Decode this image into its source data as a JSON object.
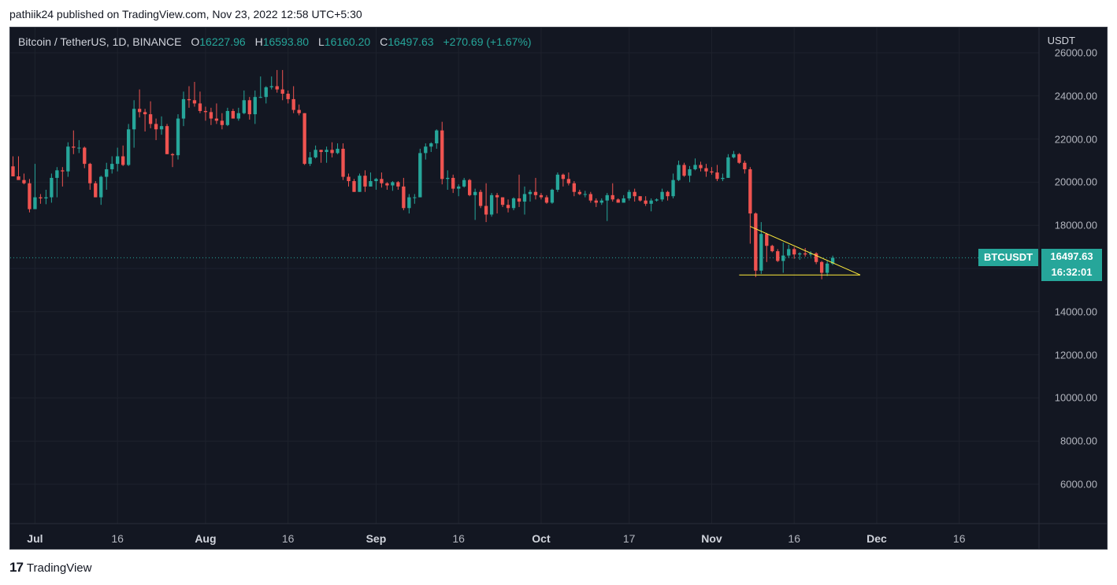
{
  "byline": "pathiik24 published on TradingView.com, Nov 23, 2022 12:58 UTC+5:30",
  "legend": {
    "symbol": "Bitcoin / TetherUS, 1D, BINANCE",
    "open_label": "O",
    "open": "16227.96",
    "high_label": "H",
    "high": "16593.80",
    "low_label": "L",
    "low": "16160.20",
    "close_label": "C",
    "close": "16497.63",
    "change": "+270.69 (+1.67%)"
  },
  "price_axis_unit": "USDT",
  "symbol_badge": "BTCUSDT",
  "price_badge": {
    "price": "16497.63",
    "countdown": "16:32:01"
  },
  "footer": {
    "brand": "TradingView",
    "logo_glyph": "17"
  },
  "colors": {
    "up": "#26a69a",
    "down": "#ef5350",
    "background": "#131722",
    "trendline": "#ffeb3b"
  },
  "chart_data": {
    "type": "candlestick",
    "symbol": "BTCUSDT",
    "interval": "1D",
    "y_ticks": [
      "6000.00",
      "8000.00",
      "10000.00",
      "12000.00",
      "14000.00",
      "16000.00",
      "18000.00",
      "20000.00",
      "22000.00",
      "24000.00",
      "26000.00"
    ],
    "x_ticks": [
      {
        "label": "Jul",
        "date": "2022-07-01",
        "major": true
      },
      {
        "label": "16",
        "date": "2022-07-16",
        "major": false
      },
      {
        "label": "Aug",
        "date": "2022-08-01",
        "major": true
      },
      {
        "label": "16",
        "date": "2022-08-16",
        "major": false
      },
      {
        "label": "Sep",
        "date": "2022-09-01",
        "major": true
      },
      {
        "label": "16",
        "date": "2022-09-16",
        "major": false
      },
      {
        "label": "Oct",
        "date": "2022-10-01",
        "major": true
      },
      {
        "label": "17",
        "date": "2022-10-17",
        "major": false
      },
      {
        "label": "Nov",
        "date": "2022-11-01",
        "major": true
      },
      {
        "label": "16",
        "date": "2022-11-16",
        "major": false
      },
      {
        "label": "Dec",
        "date": "2022-12-01",
        "major": true
      },
      {
        "label": "16",
        "date": "2022-12-16",
        "major": false
      }
    ],
    "ylim": [
      4500,
      26200
    ],
    "xlim": [
      "2022-06-27",
      "2022-12-31"
    ],
    "last_price": 16497.63,
    "candles": [
      [
        "2022-06-27",
        20735,
        21200,
        20450,
        20270
      ],
      [
        "2022-06-28",
        20270,
        21200,
        20150,
        20100
      ],
      [
        "2022-06-29",
        20100,
        20400,
        19900,
        19950
      ],
      [
        "2022-06-30",
        19950,
        20150,
        18600,
        18750
      ],
      [
        "2022-07-01",
        18750,
        20850,
        18800,
        19300
      ],
      [
        "2022-07-02",
        19300,
        19450,
        19000,
        19250
      ],
      [
        "2022-07-03",
        19250,
        19650,
        18980,
        19300
      ],
      [
        "2022-07-04",
        19300,
        20400,
        19050,
        20200
      ],
      [
        "2022-07-05",
        20200,
        20700,
        19300,
        20550
      ],
      [
        "2022-07-06",
        20550,
        20700,
        19800,
        20500
      ],
      [
        "2022-07-07",
        20500,
        21850,
        20250,
        21650
      ],
      [
        "2022-07-08",
        21650,
        22400,
        21300,
        21600
      ],
      [
        "2022-07-09",
        21600,
        21950,
        21350,
        21600
      ],
      [
        "2022-07-10",
        21600,
        21650,
        20650,
        20850
      ],
      [
        "2022-07-11",
        20850,
        20900,
        19650,
        19950
      ],
      [
        "2022-07-12",
        19950,
        20050,
        19300,
        19300
      ],
      [
        "2022-07-13",
        19300,
        20300,
        18950,
        20250
      ],
      [
        "2022-07-14",
        20250,
        20900,
        19650,
        20600
      ],
      [
        "2022-07-15",
        20600,
        21200,
        20400,
        20850
      ],
      [
        "2022-07-16",
        20850,
        21600,
        20500,
        21200
      ],
      [
        "2022-07-17",
        21200,
        21700,
        20750,
        20800
      ],
      [
        "2022-07-18",
        20800,
        22700,
        20750,
        22450
      ],
      [
        "2022-07-19",
        22450,
        23800,
        21600,
        23400
      ],
      [
        "2022-07-20",
        23400,
        24300,
        23000,
        23250
      ],
      [
        "2022-07-21",
        23250,
        23400,
        22350,
        23150
      ],
      [
        "2022-07-22",
        23150,
        23750,
        22500,
        22700
      ],
      [
        "2022-07-23",
        22700,
        22950,
        21950,
        22450
      ],
      [
        "2022-07-24",
        22450,
        23050,
        22200,
        22600
      ],
      [
        "2022-07-25",
        22600,
        22700,
        21300,
        21300
      ],
      [
        "2022-07-26",
        21300,
        21350,
        20700,
        21250
      ],
      [
        "2022-07-27",
        21250,
        23150,
        21050,
        22950
      ],
      [
        "2022-07-28",
        22950,
        24200,
        22600,
        23850
      ],
      [
        "2022-07-29",
        23850,
        24450,
        23450,
        23800
      ],
      [
        "2022-07-30",
        23800,
        24650,
        23500,
        23650
      ],
      [
        "2022-07-31",
        23650,
        24200,
        23200,
        23300
      ],
      [
        "2022-08-01",
        23300,
        23500,
        22850,
        23250
      ],
      [
        "2022-08-02",
        23250,
        23450,
        22650,
        22950
      ],
      [
        "2022-08-03",
        22950,
        23650,
        22700,
        22850
      ],
      [
        "2022-08-04",
        22850,
        23200,
        22450,
        22650
      ],
      [
        "2022-08-05",
        22650,
        23450,
        22600,
        23300
      ],
      [
        "2022-08-06",
        23300,
        23400,
        22950,
        22950
      ],
      [
        "2022-08-07",
        22950,
        23450,
        22850,
        23200
      ],
      [
        "2022-08-08",
        23200,
        24250,
        23150,
        23800
      ],
      [
        "2022-08-09",
        23800,
        23950,
        22900,
        23150
      ],
      [
        "2022-08-10",
        23150,
        24250,
        22700,
        23950
      ],
      [
        "2022-08-11",
        23950,
        24900,
        23900,
        23950
      ],
      [
        "2022-08-12",
        23950,
        24450,
        23650,
        24400
      ],
      [
        "2022-08-13",
        24400,
        24900,
        24300,
        24450
      ],
      [
        "2022-08-14",
        24450,
        25200,
        24150,
        24300
      ],
      [
        "2022-08-15",
        24300,
        25200,
        23800,
        24100
      ],
      [
        "2022-08-16",
        24100,
        24250,
        23650,
        23850
      ],
      [
        "2022-08-17",
        23850,
        24450,
        23200,
        23350
      ],
      [
        "2022-08-18",
        23350,
        23600,
        23100,
        23200
      ],
      [
        "2022-08-19",
        23200,
        23200,
        20800,
        20850
      ],
      [
        "2022-08-20",
        20850,
        21400,
        20750,
        21150
      ],
      [
        "2022-08-21",
        21150,
        21700,
        21100,
        21500
      ],
      [
        "2022-08-22",
        21500,
        21500,
        20900,
        21400
      ],
      [
        "2022-08-23",
        21400,
        21650,
        20900,
        21500
      ],
      [
        "2022-08-24",
        21500,
        21850,
        21150,
        21350
      ],
      [
        "2022-08-25",
        21350,
        21800,
        21300,
        21550
      ],
      [
        "2022-08-26",
        21550,
        21800,
        20100,
        20250
      ],
      [
        "2022-08-27",
        20250,
        20400,
        19800,
        20050
      ],
      [
        "2022-08-28",
        20050,
        20150,
        19550,
        19550
      ],
      [
        "2022-08-29",
        19550,
        20400,
        19550,
        20300
      ],
      [
        "2022-08-30",
        20300,
        20550,
        19550,
        19800
      ],
      [
        "2022-08-31",
        19800,
        20450,
        19800,
        20050
      ],
      [
        "2022-09-01",
        20050,
        20200,
        19650,
        20150
      ],
      [
        "2022-09-02",
        20150,
        20450,
        19750,
        19950
      ],
      [
        "2022-09-03",
        19950,
        20000,
        19650,
        19850
      ],
      [
        "2022-09-04",
        19850,
        20050,
        19600,
        20000
      ],
      [
        "2022-09-05",
        20000,
        20050,
        19650,
        19800
      ],
      [
        "2022-09-06",
        19800,
        20200,
        18700,
        18800
      ],
      [
        "2022-09-07",
        18800,
        19450,
        18550,
        19300
      ],
      [
        "2022-09-08",
        19300,
        19450,
        19000,
        19300
      ],
      [
        "2022-09-09",
        19300,
        21550,
        19300,
        21350
      ],
      [
        "2022-09-10",
        21350,
        21800,
        21050,
        21650
      ],
      [
        "2022-09-11",
        21650,
        21850,
        21400,
        21800
      ],
      [
        "2022-09-12",
        21800,
        22450,
        21550,
        22400
      ],
      [
        "2022-09-13",
        22400,
        22800,
        19900,
        20150
      ],
      [
        "2022-09-14",
        20150,
        20550,
        19650,
        20200
      ],
      [
        "2022-09-15",
        20200,
        20350,
        19500,
        19700
      ],
      [
        "2022-09-16",
        19700,
        19900,
        19350,
        19800
      ],
      [
        "2022-09-17",
        19800,
        20200,
        19750,
        20100
      ],
      [
        "2022-09-18",
        20100,
        20150,
        19350,
        19400
      ],
      [
        "2022-09-19",
        19400,
        19700,
        18250,
        19550
      ],
      [
        "2022-09-20",
        19550,
        19650,
        18800,
        18900
      ],
      [
        "2022-09-21",
        18900,
        19950,
        18150,
        18500
      ],
      [
        "2022-09-22",
        18500,
        19500,
        18400,
        19400
      ],
      [
        "2022-09-23",
        19400,
        19500,
        18550,
        19300
      ],
      [
        "2022-09-24",
        19300,
        19300,
        18850,
        18950
      ],
      [
        "2022-09-25",
        18950,
        19200,
        18600,
        18800
      ],
      [
        "2022-09-26",
        18800,
        19300,
        18700,
        19250
      ],
      [
        "2022-09-27",
        19250,
        20350,
        18850,
        19100
      ],
      [
        "2022-09-28",
        19100,
        19800,
        18500,
        19450
      ],
      [
        "2022-09-29",
        19450,
        19650,
        19100,
        19550
      ],
      [
        "2022-09-30",
        19550,
        20200,
        19200,
        19400
      ],
      [
        "2022-10-01",
        19400,
        19500,
        19200,
        19300
      ],
      [
        "2022-10-02",
        19300,
        19400,
        19000,
        19050
      ],
      [
        "2022-10-03",
        19050,
        19700,
        19000,
        19650
      ],
      [
        "2022-10-04",
        19650,
        20450,
        19550,
        20350
      ],
      [
        "2022-10-05",
        20350,
        20400,
        19800,
        20150
      ],
      [
        "2022-10-06",
        20150,
        20450,
        19850,
        19950
      ],
      [
        "2022-10-07",
        19950,
        20050,
        19350,
        19550
      ],
      [
        "2022-10-08",
        19550,
        19650,
        19400,
        19450
      ],
      [
        "2022-10-09",
        19450,
        19600,
        19300,
        19450
      ],
      [
        "2022-10-10",
        19450,
        19550,
        19050,
        19150
      ],
      [
        "2022-10-11",
        19150,
        19250,
        18850,
        19050
      ],
      [
        "2022-10-12",
        19050,
        19250,
        18950,
        19150
      ],
      [
        "2022-10-13",
        19150,
        19500,
        18200,
        19400
      ],
      [
        "2022-10-14",
        19400,
        19950,
        19100,
        19200
      ],
      [
        "2022-10-15",
        19200,
        19250,
        19050,
        19050
      ],
      [
        "2022-10-16",
        19050,
        19400,
        19050,
        19250
      ],
      [
        "2022-10-17",
        19250,
        19650,
        19150,
        19550
      ],
      [
        "2022-10-18",
        19550,
        19700,
        19100,
        19350
      ],
      [
        "2022-10-19",
        19350,
        19350,
        19100,
        19150
      ],
      [
        "2022-10-20",
        19150,
        19350,
        18900,
        19000
      ],
      [
        "2022-10-21",
        19000,
        19250,
        18650,
        19150
      ],
      [
        "2022-10-22",
        19150,
        19250,
        19100,
        19200
      ],
      [
        "2022-10-23",
        19200,
        19700,
        19100,
        19550
      ],
      [
        "2022-10-24",
        19550,
        19600,
        19150,
        19350
      ],
      [
        "2022-10-25",
        19350,
        20400,
        19250,
        20100
      ],
      [
        "2022-10-26",
        20100,
        21000,
        20050,
        20800
      ],
      [
        "2022-10-27",
        20800,
        20900,
        20250,
        20300
      ],
      [
        "2022-10-28",
        20300,
        20750,
        20000,
        20600
      ],
      [
        "2022-10-29",
        20600,
        21100,
        20550,
        20800
      ],
      [
        "2022-10-30",
        20800,
        20950,
        20500,
        20650
      ],
      [
        "2022-10-31",
        20650,
        20850,
        20250,
        20500
      ],
      [
        "2022-11-01",
        20500,
        20700,
        20350,
        20450
      ],
      [
        "2022-11-02",
        20450,
        20800,
        20050,
        20150
      ],
      [
        "2022-11-03",
        20150,
        20400,
        20050,
        20200
      ],
      [
        "2022-11-04",
        20200,
        21300,
        20200,
        21150
      ],
      [
        "2022-11-05",
        21150,
        21450,
        21100,
        21300
      ],
      [
        "2022-11-06",
        21300,
        21350,
        20850,
        20900
      ],
      [
        "2022-11-07",
        20900,
        21000,
        20400,
        20600
      ],
      [
        "2022-11-08",
        20600,
        20700,
        17150,
        18550
      ],
      [
        "2022-11-09",
        18550,
        18600,
        15600,
        15900
      ],
      [
        "2022-11-10",
        15900,
        18150,
        15750,
        17600
      ],
      [
        "2022-11-11",
        17600,
        17650,
        16300,
        17050
      ],
      [
        "2022-11-12",
        17050,
        17100,
        16750,
        16800
      ],
      [
        "2022-11-13",
        16800,
        16900,
        16300,
        16350
      ],
      [
        "2022-11-14",
        16350,
        17200,
        15800,
        16600
      ],
      [
        "2022-11-15",
        16600,
        17100,
        16500,
        16900
      ],
      [
        "2022-11-16",
        16900,
        17000,
        16450,
        16650
      ],
      [
        "2022-11-17",
        16650,
        16750,
        16400,
        16700
      ],
      [
        "2022-11-18",
        16700,
        16950,
        16550,
        16650
      ],
      [
        "2022-11-19",
        16650,
        16800,
        16550,
        16700
      ],
      [
        "2022-11-20",
        16700,
        16750,
        16200,
        16300
      ],
      [
        "2022-11-21",
        16300,
        16350,
        15500,
        15800
      ],
      [
        "2022-11-22",
        15800,
        16350,
        15650,
        16227.96
      ],
      [
        "2022-11-23",
        16227.96,
        16593.8,
        16160.2,
        16497.63
      ]
    ],
    "trendlines": [
      {
        "from": {
          "date": "2022-11-08",
          "price": 17950
        },
        "to": {
          "date": "2022-11-28",
          "price": 15700
        }
      },
      {
        "from": {
          "date": "2022-11-06",
          "price": 15700
        },
        "to": {
          "date": "2022-11-28",
          "price": 15700
        }
      }
    ]
  }
}
